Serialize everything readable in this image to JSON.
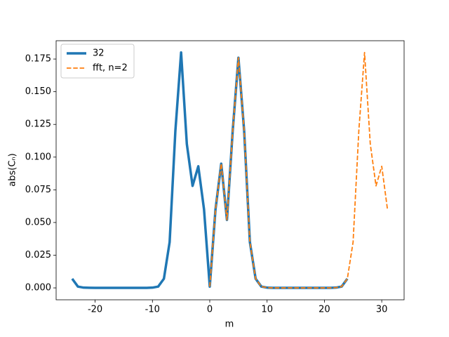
{
  "chart_data": {
    "type": "line",
    "xlabel": "m",
    "ylabel": "abs(Cₙ)",
    "xlim": [
      -26.8,
      33.9
    ],
    "ylim": [
      -0.0091,
      0.189
    ],
    "xticks": [
      -20,
      -10,
      0,
      10,
      20,
      30
    ],
    "yticks": [
      {
        "value": 0,
        "label": "0.000"
      },
      {
        "value": 0.025,
        "label": "0.025"
      },
      {
        "value": 0.05,
        "label": "0.050"
      },
      {
        "value": 0.075,
        "label": "0.075"
      },
      {
        "value": 0.1,
        "label": "0.100"
      },
      {
        "value": 0.125,
        "label": "0.125"
      },
      {
        "value": 0.15,
        "label": "0.150"
      },
      {
        "value": 0.175,
        "label": "0.175"
      }
    ],
    "legend": "upper left",
    "series": [
      {
        "name": "32",
        "color": "#1f77b4",
        "style": "solid",
        "width": 3.5,
        "x": [
          -24,
          -23,
          -22,
          -21,
          -20,
          -19,
          -18,
          -17,
          -16,
          -15,
          -14,
          -13,
          -12,
          -11,
          -10,
          -9,
          -8,
          -7,
          -6,
          -5,
          -4,
          -3,
          -2,
          -1,
          0,
          1,
          2,
          3,
          4,
          5,
          6,
          7,
          8,
          9,
          10,
          11,
          12,
          13,
          14,
          15,
          16,
          17,
          18,
          19,
          20,
          21,
          22,
          23,
          24
        ],
        "values": [
          0.007,
          0.001,
          0.0002,
          0.0001,
          0,
          0,
          0,
          0,
          0,
          0,
          0,
          0,
          0,
          0,
          0.0002,
          0.001,
          0.007,
          0.035,
          0.12,
          0.18,
          0.11,
          0.078,
          0.093,
          0.06,
          0.001,
          0.06,
          0.095,
          0.052,
          0.12,
          0.176,
          0.12,
          0.035,
          0.007,
          0.001,
          0.0002,
          0,
          0,
          0,
          0,
          0,
          0,
          0,
          0,
          0,
          0,
          0,
          0.0002,
          0.001,
          0.007
        ]
      },
      {
        "name": "fft, n=2",
        "color": "#ff7f0e",
        "style": "dashed",
        "width": 1.8,
        "x": [
          0,
          1,
          2,
          3,
          4,
          5,
          6,
          7,
          8,
          9,
          10,
          11,
          12,
          13,
          14,
          15,
          16,
          17,
          18,
          19,
          20,
          21,
          22,
          23,
          24,
          25,
          26,
          27,
          28,
          29,
          30,
          31
        ],
        "values": [
          0.001,
          0.06,
          0.095,
          0.052,
          0.12,
          0.176,
          0.12,
          0.035,
          0.007,
          0.001,
          0.0002,
          0,
          0,
          0,
          0,
          0,
          0,
          0,
          0,
          0,
          0,
          0,
          0.0002,
          0.001,
          0.007,
          0.035,
          0.12,
          0.18,
          0.11,
          0.078,
          0.093,
          0.06
        ]
      }
    ]
  }
}
